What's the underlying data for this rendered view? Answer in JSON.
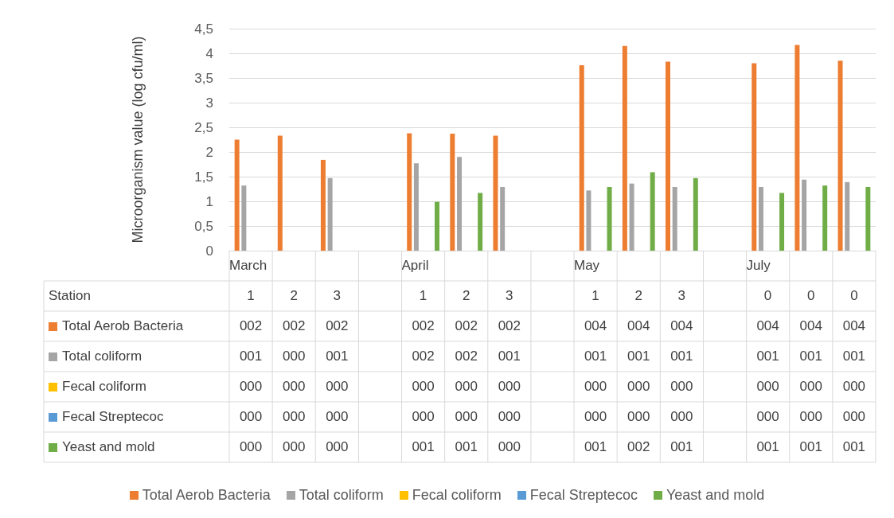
{
  "chart_data": {
    "type": "bar",
    "ylabel": "Microorganism value (log cfu/ml)",
    "categories": [
      "1",
      "2",
      "3",
      null,
      "1",
      "2",
      "3",
      null,
      "1",
      "2",
      "3",
      null,
      "0",
      "0",
      "0"
    ],
    "annotations": [
      "Station",
      "March",
      "April",
      "May",
      "July"
    ],
    "ylim": [
      0,
      4.5
    ],
    "yticks": [
      0,
      {
        "value": 0.5,
        "label": "0,5"
      },
      1,
      {
        "value": 1.5,
        "label": "1,5"
      },
      2,
      {
        "value": 2.5,
        "label": "2,5"
      },
      3,
      {
        "value": 3.5,
        "label": "3,5"
      },
      4,
      {
        "value": 4.5,
        "label": "4,5"
      }
    ],
    "grid": "y",
    "legend": "bottom",
    "series": [
      {
        "name": "Total Aerob Bacteria",
        "color": "#ed7d31",
        "values": [
          2.25,
          2.33,
          1.84,
          null,
          2.38,
          2.37,
          2.33,
          null,
          3.76,
          4.15,
          3.83,
          null,
          3.8,
          4.17,
          3.85
        ],
        "value_labels": [
          "002",
          "002",
          "002",
          null,
          "002",
          "002",
          "002",
          null,
          "004",
          "004",
          "004",
          null,
          "004",
          "004",
          "004"
        ]
      },
      {
        "name": "Total coliform",
        "color": "#a5a5a5",
        "values": [
          1.32,
          0,
          1.47,
          null,
          1.77,
          1.9,
          1.29,
          null,
          1.22,
          1.36,
          1.29,
          null,
          1.29,
          1.44,
          1.39
        ],
        "value_labels": [
          "001",
          "000",
          "001",
          null,
          "002",
          "002",
          "001",
          null,
          "001",
          "001",
          "001",
          null,
          "001",
          "001",
          "001"
        ]
      },
      {
        "name": "Fecal coliform",
        "color": "#ffc000",
        "values": [
          0,
          0,
          0,
          null,
          0,
          0,
          0,
          null,
          0,
          0,
          0,
          null,
          0,
          0,
          0
        ],
        "value_labels": [
          "000",
          "000",
          "000",
          null,
          "000",
          "000",
          "000",
          null,
          "000",
          "000",
          "000",
          null,
          "000",
          "000",
          "000"
        ]
      },
      {
        "name": "Fecal Streptecoc",
        "color": "#5b9bd5",
        "values": [
          0,
          0,
          0,
          null,
          0,
          0,
          0,
          null,
          0,
          0,
          0,
          null,
          0,
          0,
          0
        ],
        "value_labels": [
          "000",
          "000",
          "000",
          null,
          "000",
          "000",
          "000",
          null,
          "000",
          "000",
          "000",
          null,
          "000",
          "000",
          "000"
        ]
      },
      {
        "name": "Yeast and mold",
        "color": "#70ad47",
        "values": [
          0,
          0,
          0,
          null,
          0.99,
          1.17,
          0,
          null,
          1.29,
          1.59,
          1.47,
          null,
          1.17,
          1.32,
          1.29
        ],
        "value_labels": [
          "000",
          "000",
          "000",
          null,
          "001",
          "001",
          "000",
          null,
          "001",
          "002",
          "001",
          null,
          "001",
          "001",
          "001"
        ]
      }
    ]
  }
}
